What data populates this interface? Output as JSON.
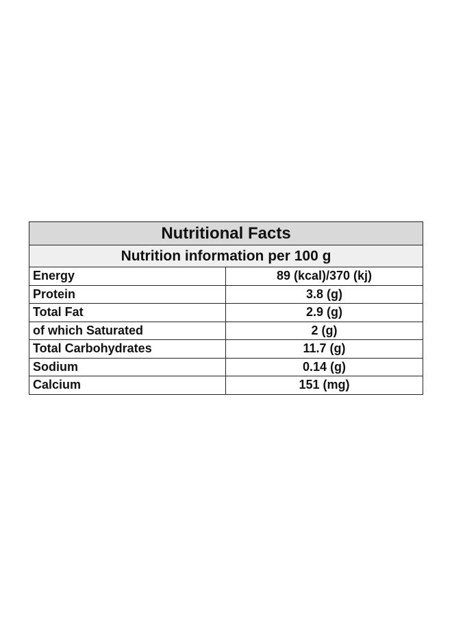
{
  "table": {
    "title": "Nutritional Facts",
    "subtitle": "Nutrition information per 100 g",
    "rows": [
      [
        "Energy",
        "89 (kcal)/370 (kj)"
      ],
      [
        "Protein",
        "3.8 (g)"
      ],
      [
        "Total Fat",
        "2.9 (g)"
      ],
      [
        "of which Saturated",
        "2 (g)"
      ],
      [
        "Total Carbohydrates",
        "11.7 (g)"
      ],
      [
        "Sodium",
        "0.14 (g)"
      ],
      [
        "Calcium",
        "151 (mg)"
      ]
    ]
  }
}
